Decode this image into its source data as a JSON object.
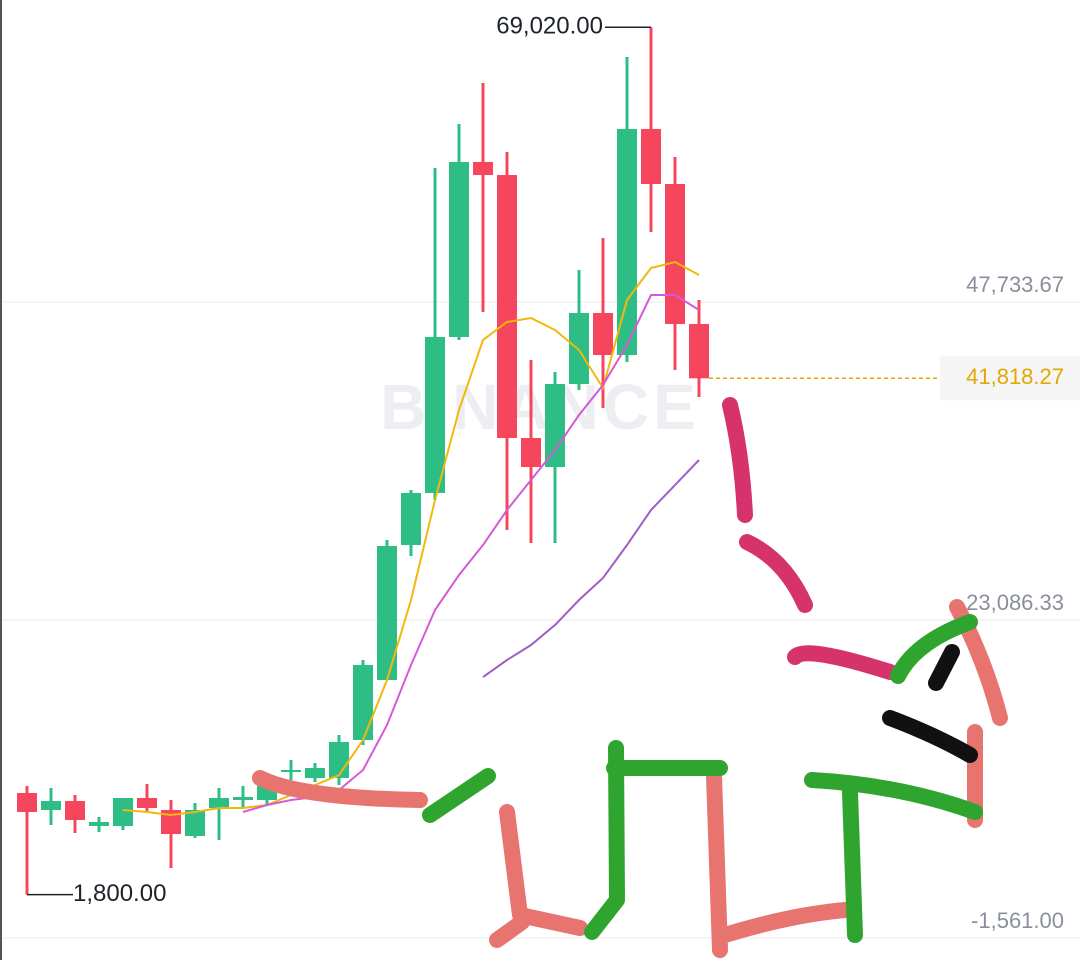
{
  "chart_data": {
    "type": "candlestick",
    "watermark": "BINANCE",
    "open": [
      9678,
      8361,
      9058,
      7121,
      7121,
      9291,
      8361,
      6346,
      8516,
      9136,
      9136,
      11306,
      10841,
      10841,
      13786,
      18436,
      28898,
      32928,
      45018,
      58581,
      57573,
      37191,
      34943,
      41376,
      46878,
      43623,
      61138,
      56876,
      46026
    ],
    "high": [
      10221,
      10066,
      9523,
      7818,
      9291,
      10376,
      9136,
      8903,
      10066,
      10221,
      11151,
      12236,
      12003,
      14173,
      19986,
      29286,
      33161,
      58116,
      61526,
      64703,
      59356,
      43236,
      42306,
      50211,
      52691,
      66718,
      69020,
      58968,
      47886
    ],
    "low": [
      1800,
      7198,
      6578,
      6656,
      6811,
      8206,
      3866,
      6191,
      6036,
      8516,
      8748,
      10686,
      10531,
      10298,
      13398,
      18436,
      28046,
      32386,
      44786,
      46956,
      30061,
      29053,
      29053,
      40911,
      39516,
      43081,
      53156,
      42461,
      40368
    ],
    "close": [
      8206,
      9058,
      7586,
      7431,
      9291,
      8516,
      6501,
      8361,
      9291,
      9368,
      10298,
      11461,
      11616,
      13631,
      19598,
      28821,
      32928,
      45018,
      58581,
      57573,
      37191,
      34943,
      41376,
      46878,
      43623,
      61138,
      56876,
      46026,
      41818.27
    ],
    "up_color": "#2ebd85",
    "down_color": "#f6465d",
    "series": [
      {
        "color": "#f0b90b",
        "values": [
          null,
          null,
          null,
          null,
          8361,
          8206,
          7973,
          8206,
          8516,
          8516,
          8748,
          9523,
          10298,
          11073,
          13786,
          18436,
          24636,
          32386,
          39361,
          44786,
          46181,
          46491,
          45561,
          44011,
          41066,
          47886,
          50366,
          50831,
          49823
        ]
      },
      {
        "color": "#d65ad8",
        "values": [
          null,
          null,
          null,
          null,
          null,
          null,
          null,
          null,
          null,
          8206,
          8748,
          9136,
          9368,
          9911,
          11461,
          14948,
          19598,
          23861,
          26573,
          28898,
          31611,
          33936,
          36261,
          38973,
          41298,
          44398,
          48273,
          48273,
          47111
        ]
      },
      {
        "color": "#9d5fc7",
        "values": [
          null,
          null,
          null,
          null,
          null,
          null,
          null,
          null,
          null,
          null,
          null,
          null,
          null,
          null,
          null,
          null,
          null,
          null,
          null,
          18668,
          19986,
          21148,
          22698,
          24636,
          26341,
          28898,
          31611,
          33548,
          35486
        ]
      }
    ],
    "ylim": [
      -3263.67,
      71136.33
    ],
    "yticks": [
      {
        "value": 47733.67,
        "label": "47,733.67"
      },
      {
        "value": 23086.33,
        "label": "23,086.33"
      },
      {
        "value": -1561.0,
        "label": "-1,561.00"
      }
    ],
    "grid": true,
    "last_price": {
      "value": 41818.27,
      "label": "41,818.27",
      "color": "#e0a800"
    },
    "max_marker": {
      "value": 69020,
      "label": "69,020.00",
      "index": 26
    },
    "min_marker": {
      "value": 1800,
      "label": "1,800.00",
      "index": 0
    }
  }
}
